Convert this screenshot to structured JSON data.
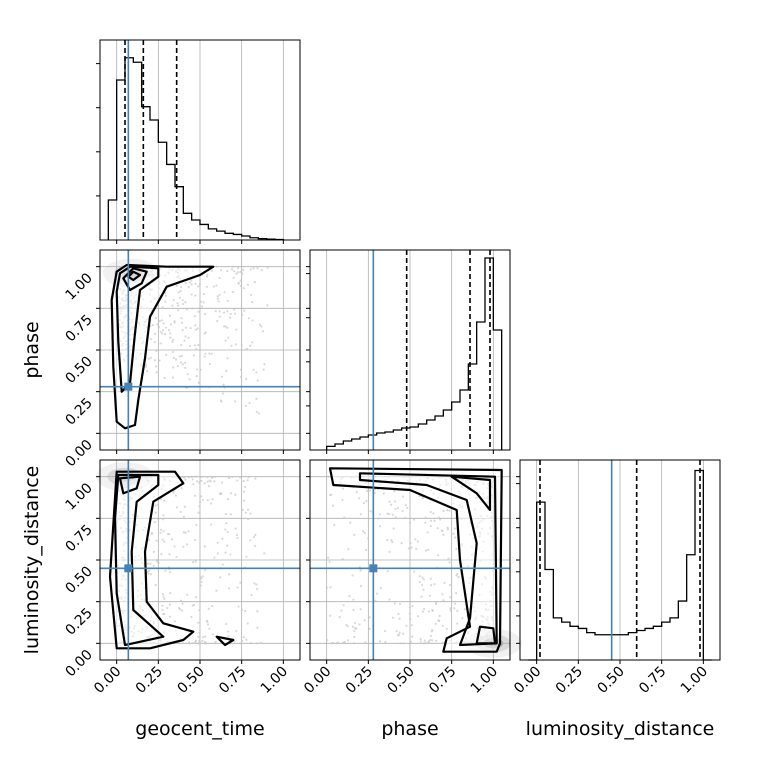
{
  "colors": {
    "truth": "#4682b4",
    "line": "#000000",
    "grid": "#b0b0b0",
    "points": "#c8c8c8"
  },
  "chart_data": {
    "type": "corner",
    "parameters": [
      "geocent_time",
      "phase",
      "luminosity_distance"
    ],
    "ticks": [
      0.0,
      0.25,
      0.5,
      0.75,
      1.0
    ],
    "tick_labels": [
      "0.00",
      "0.25",
      "0.50",
      "0.75",
      "1.00"
    ],
    "xlim": [
      -0.1,
      1.1
    ],
    "grid": true,
    "truths": {
      "geocent_time": 0.07,
      "phase": 0.28,
      "luminosity_distance": 0.45
    },
    "quantiles": {
      "geocent_time": [
        0.05,
        0.16,
        0.36
      ],
      "phase": [
        0.48,
        0.86,
        0.98
      ],
      "luminosity_distance": [
        0.02,
        0.6,
        0.98
      ]
    },
    "histograms": {
      "geocent_time": {
        "bin_edges": [
          -0.05,
          0.0,
          0.05,
          0.1,
          0.15,
          0.2,
          0.25,
          0.3,
          0.35,
          0.4,
          0.45,
          0.5,
          0.55,
          0.6,
          0.65,
          0.7,
          0.75,
          0.8,
          0.85,
          0.9,
          0.95,
          1.0
        ],
        "counts": [
          0.18,
          0.72,
          0.82,
          0.8,
          0.6,
          0.54,
          0.44,
          0.34,
          0.24,
          0.12,
          0.09,
          0.07,
          0.05,
          0.04,
          0.03,
          0.025,
          0.018,
          0.01,
          0.006,
          0.004,
          0.002
        ],
        "ylim": [
          0,
          0.9
        ]
      },
      "phase": {
        "bin_edges": [
          0.0,
          0.05,
          0.1,
          0.15,
          0.2,
          0.25,
          0.3,
          0.35,
          0.4,
          0.45,
          0.5,
          0.55,
          0.6,
          0.65,
          0.7,
          0.75,
          0.8,
          0.85,
          0.9,
          0.95,
          1.0,
          1.05
        ],
        "counts": [
          0.018,
          0.03,
          0.045,
          0.055,
          0.065,
          0.075,
          0.085,
          0.09,
          0.1,
          0.11,
          0.115,
          0.13,
          0.15,
          0.17,
          0.2,
          0.24,
          0.3,
          0.43,
          0.64,
          0.96,
          0.6
        ],
        "ylim": [
          0,
          1.0
        ]
      },
      "luminosity_distance": {
        "bin_edges": [
          -0.05,
          0.0,
          0.05,
          0.1,
          0.15,
          0.2,
          0.25,
          0.3,
          0.35,
          0.4,
          0.45,
          0.5,
          0.55,
          0.6,
          0.65,
          0.7,
          0.75,
          0.8,
          0.85,
          0.9,
          0.95,
          1.0,
          1.05
        ],
        "counts": [
          0,
          0.75,
          0.43,
          0.2,
          0.18,
          0.16,
          0.15,
          0.13,
          0.12,
          0.12,
          0.12,
          0.12,
          0.13,
          0.14,
          0.15,
          0.16,
          0.18,
          0.2,
          0.28,
          0.5,
          0.9,
          0
        ],
        "ylim": [
          0,
          0.95
        ]
      }
    },
    "density_peaks": {
      "phase_vs_geocent_time": {
        "x": 0.09,
        "y": 0.96
      },
      "luminosity_distance_vs_geocent_time": {
        "x": 0.05,
        "y": 1.0
      },
      "luminosity_distance_vs_phase": {
        "x": 1.0,
        "y": 0.0
      }
    }
  }
}
